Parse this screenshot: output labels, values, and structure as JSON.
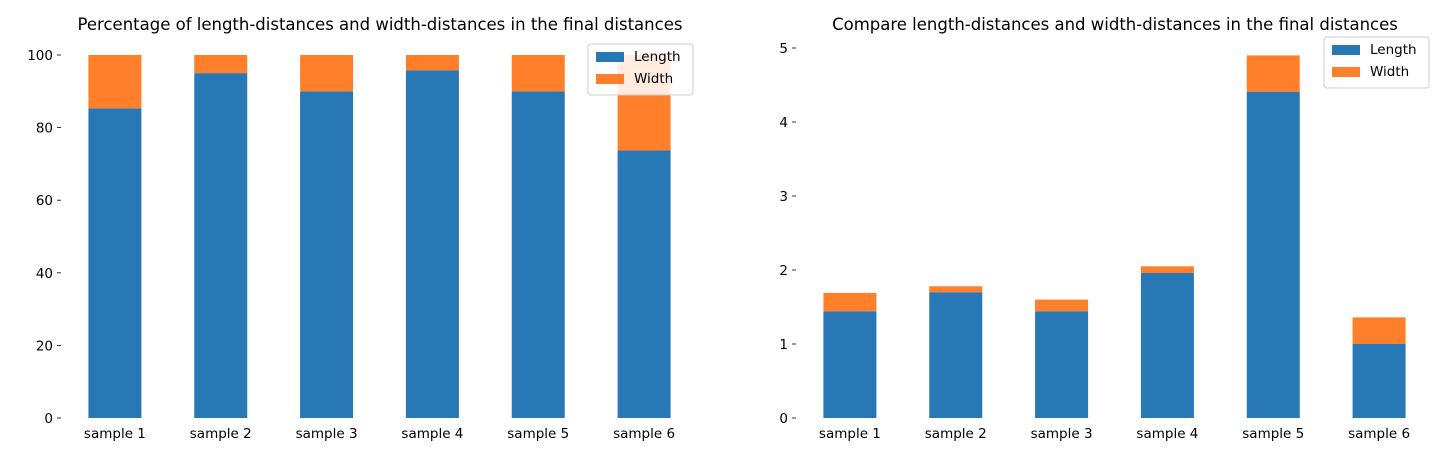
{
  "chart_data": [
    {
      "type": "bar",
      "stacked": true,
      "title": "Percentage of length-distances and width-distances in the final distances",
      "xlabel": "",
      "ylabel": "",
      "categories": [
        "sample 1",
        "sample 2",
        "sample 3",
        "sample 4",
        "sample 5",
        "sample 6"
      ],
      "series": [
        {
          "name": "Length",
          "color": "#2878b5",
          "values": [
            85.3,
            95.0,
            90.0,
            95.8,
            90.0,
            73.7
          ]
        },
        {
          "name": "Width",
          "color": "#ff7f2a",
          "values": [
            14.7,
            5.0,
            10.0,
            4.2,
            10.0,
            26.3
          ]
        }
      ],
      "ylim": [
        0,
        100
      ],
      "yticks": [
        0,
        20,
        40,
        60,
        80,
        100
      ],
      "grid": false,
      "legend_position": "top-right"
    },
    {
      "type": "bar",
      "stacked": true,
      "title": "Compare length-distances and width-distances in the final distances",
      "xlabel": "",
      "ylabel": "",
      "categories": [
        "sample 1",
        "sample 2",
        "sample 3",
        "sample 4",
        "sample 5",
        "sample 6"
      ],
      "series": [
        {
          "name": "Length",
          "color": "#2878b5",
          "values": [
            1.44,
            1.7,
            1.44,
            1.96,
            4.41,
            1.0
          ]
        },
        {
          "name": "Width",
          "color": "#ff7f2a",
          "values": [
            0.25,
            0.08,
            0.16,
            0.09,
            0.49,
            0.36
          ]
        }
      ],
      "ylim": [
        0,
        5
      ],
      "yticks": [
        0,
        1,
        2,
        3,
        4,
        5
      ],
      "grid": false,
      "legend_position": "top-right"
    }
  ]
}
